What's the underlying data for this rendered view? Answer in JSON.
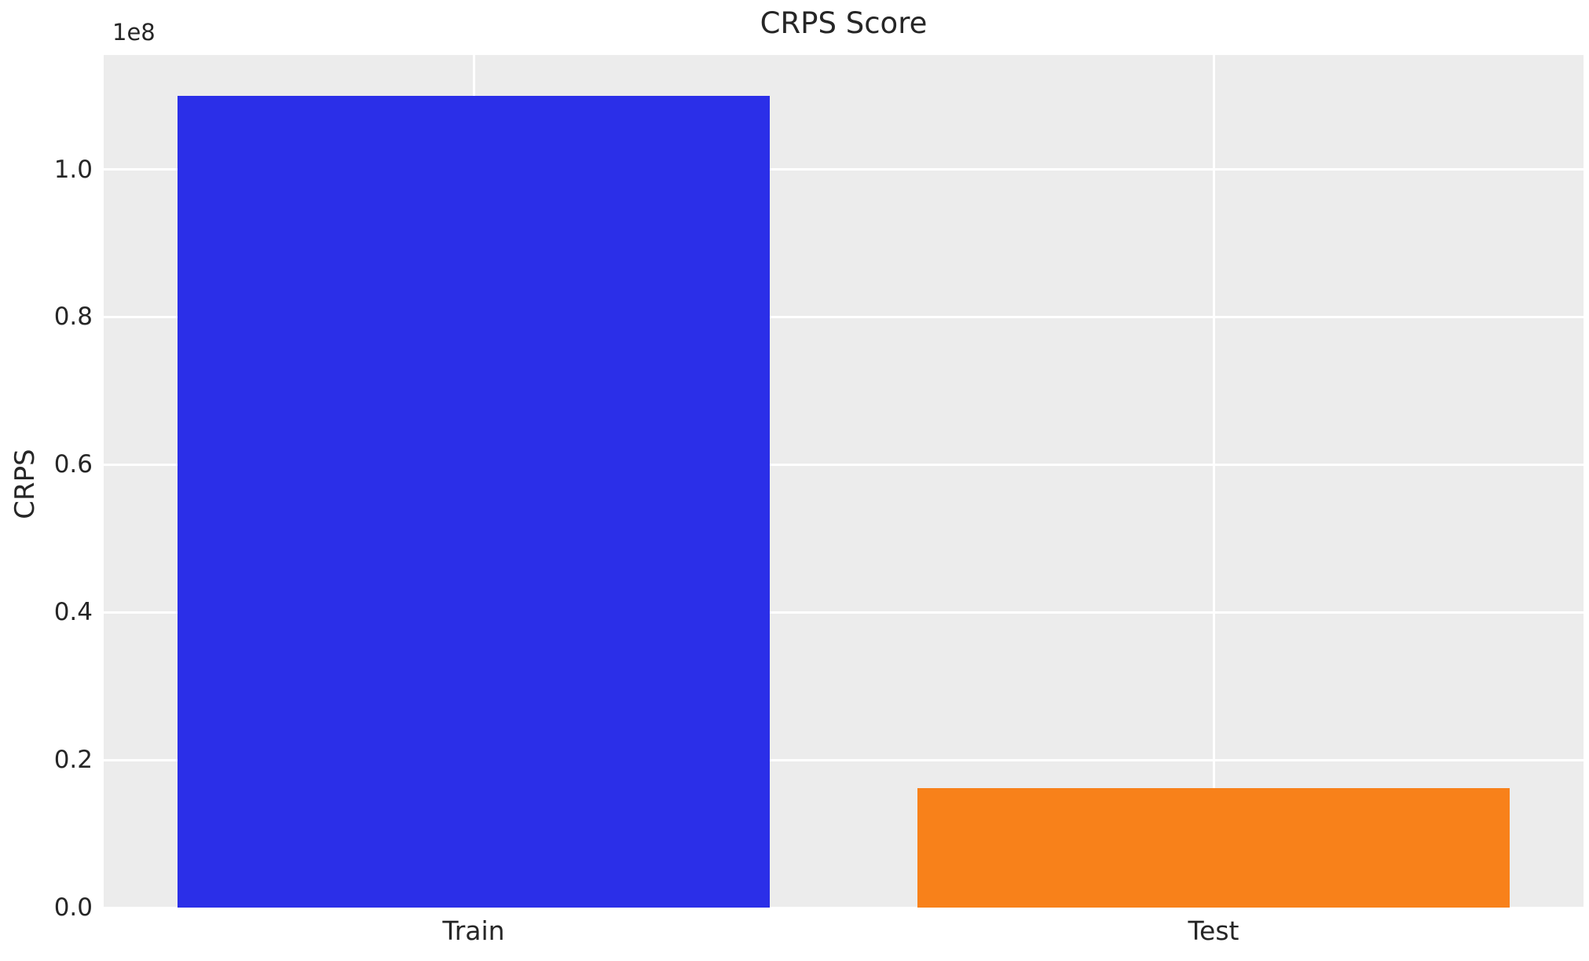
{
  "chart_data": {
    "type": "bar",
    "title": "CRPS Score",
    "xlabel": "",
    "ylabel": "CRPS",
    "y_offset_text": "1e8",
    "categories": [
      "Train",
      "Test"
    ],
    "values": [
      110000000,
      16200000
    ],
    "bar_colors": [
      "#2b2fe8",
      "#f8811a"
    ],
    "bar_width_fraction": 0.8,
    "ylim": [
      0,
      115500000
    ],
    "yticks": [
      {
        "value": 0,
        "label": "0.0"
      },
      {
        "value": 20000000,
        "label": "0.2"
      },
      {
        "value": 40000000,
        "label": "0.4"
      },
      {
        "value": 60000000,
        "label": "0.6"
      },
      {
        "value": 80000000,
        "label": "0.8"
      },
      {
        "value": 100000000,
        "label": "1.0"
      }
    ],
    "grid": true,
    "grid_color": "#ffffff",
    "plot_background": "#ececec",
    "text_color": "#262626",
    "legend_position": "none"
  }
}
